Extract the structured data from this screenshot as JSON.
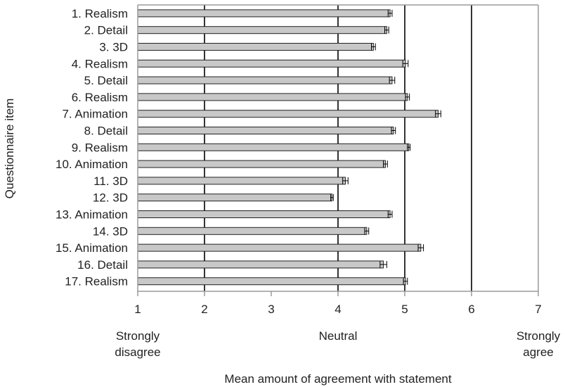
{
  "chart_data": {
    "type": "bar",
    "orientation": "horizontal",
    "title": "",
    "xlabel": "Mean amount of agreement with statement",
    "ylabel": "Questionnaire item",
    "xlim": [
      1,
      7
    ],
    "xticks": [
      1,
      2,
      3,
      4,
      5,
      6,
      7
    ],
    "scale_labels": [
      {
        "at": 1,
        "lines": [
          "Strongly",
          "disagree"
        ]
      },
      {
        "at": 4,
        "lines": [
          "Neutral"
        ]
      },
      {
        "at": 7,
        "lines": [
          "Strongly",
          "agree"
        ]
      }
    ],
    "grid": "vertical lines at 2, 4, 5, 6",
    "categories": [
      "1. Realism",
      "2. Detail",
      "3. 3D",
      "4. Realism",
      "5. Detail",
      "6. Realism",
      "7. Animation",
      "8. Detail",
      "9. Realism",
      "10. Animation",
      "11. 3D",
      "12. 3D",
      "13. Animation",
      "14. 3D",
      "15. Animation",
      "16. Detail",
      "17. Realism"
    ],
    "values": [
      4.78,
      4.73,
      4.53,
      5.01,
      4.81,
      5.04,
      5.5,
      4.83,
      5.06,
      4.71,
      4.11,
      3.91,
      4.78,
      4.43,
      5.24,
      4.68,
      5.01
    ],
    "errors": [
      0.03,
      0.03,
      0.03,
      0.04,
      0.04,
      0.03,
      0.04,
      0.03,
      0.02,
      0.03,
      0.04,
      0.02,
      0.03,
      0.03,
      0.04,
      0.05,
      0.03
    ],
    "colors": {
      "bar_fill": "#c8c8c8",
      "bar_stroke": "#222222",
      "grid": "#000000",
      "frame": "#9a9a9a"
    }
  }
}
